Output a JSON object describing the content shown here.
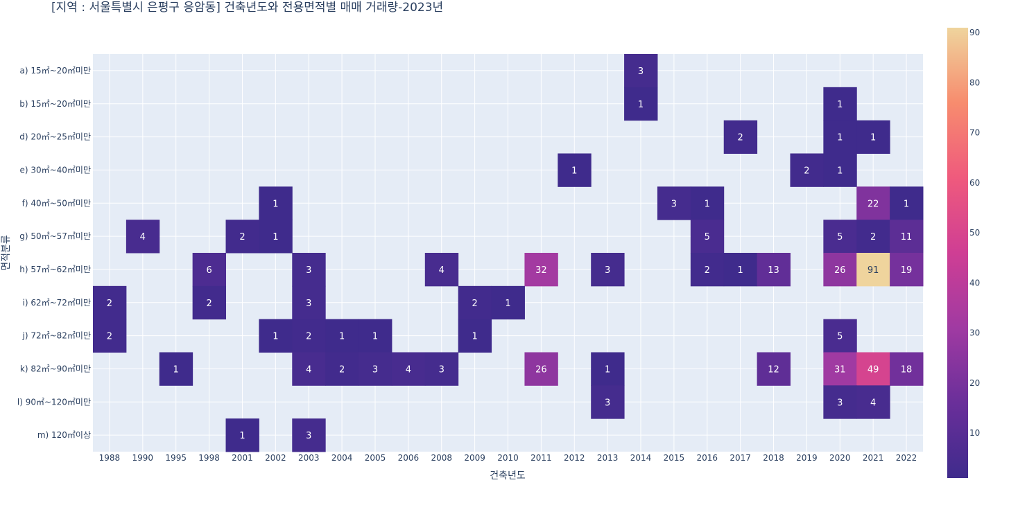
{
  "chart_data": {
    "type": "heatmap",
    "title": "[지역 : 서울특별시 은평구 응암동] 건축년도와 전용면적별 매매 거래량-2023년",
    "xlabel": "건축년도",
    "ylabel": "면적분류",
    "x": [
      "1988",
      "1990",
      "1995",
      "1998",
      "2001",
      "2002",
      "2003",
      "2004",
      "2005",
      "2006",
      "2008",
      "2009",
      "2010",
      "2011",
      "2012",
      "2013",
      "2014",
      "2015",
      "2016",
      "2017",
      "2018",
      "2019",
      "2020",
      "2021",
      "2022"
    ],
    "y": [
      "a) 15㎡~20㎡미만",
      "b) 15㎡~20㎡미만",
      "d) 20㎡~25㎡미만",
      "e) 30㎡~40㎡미만",
      "f) 40㎡~50㎡미만",
      "g) 50㎡~57㎡미만",
      "h) 57㎡~62㎡미만",
      "i) 62㎡~72㎡미만",
      "j) 72㎡~82㎡미만",
      "k) 82㎡~90㎡미만",
      "l) 90㎡~120㎡미만",
      "m) 120㎡이상"
    ],
    "z": [
      [
        null,
        null,
        null,
        null,
        null,
        null,
        null,
        null,
        null,
        null,
        null,
        null,
        null,
        null,
        null,
        null,
        3,
        null,
        null,
        null,
        null,
        null,
        null,
        null,
        null
      ],
      [
        null,
        null,
        null,
        null,
        null,
        null,
        null,
        null,
        null,
        null,
        null,
        null,
        null,
        null,
        null,
        null,
        1,
        null,
        null,
        null,
        null,
        null,
        1,
        null,
        null
      ],
      [
        null,
        null,
        null,
        null,
        null,
        null,
        null,
        null,
        null,
        null,
        null,
        null,
        null,
        null,
        null,
        null,
        null,
        null,
        null,
        2,
        null,
        null,
        1,
        1,
        null
      ],
      [
        null,
        null,
        null,
        null,
        null,
        null,
        null,
        null,
        null,
        null,
        null,
        null,
        null,
        null,
        1,
        null,
        null,
        null,
        null,
        null,
        null,
        2,
        1,
        null,
        null
      ],
      [
        null,
        null,
        null,
        null,
        null,
        1,
        null,
        null,
        null,
        null,
        null,
        null,
        null,
        null,
        null,
        null,
        null,
        3,
        1,
        null,
        null,
        null,
        null,
        22,
        1
      ],
      [
        null,
        4,
        null,
        null,
        2,
        1,
        null,
        null,
        null,
        null,
        null,
        null,
        null,
        null,
        null,
        null,
        null,
        null,
        5,
        null,
        null,
        null,
        5,
        2,
        11
      ],
      [
        null,
        null,
        null,
        6,
        null,
        null,
        3,
        null,
        null,
        null,
        4,
        null,
        null,
        32,
        null,
        3,
        null,
        null,
        2,
        1,
        13,
        null,
        26,
        91,
        19
      ],
      [
        2,
        null,
        null,
        2,
        null,
        null,
        3,
        null,
        null,
        null,
        null,
        2,
        1,
        null,
        null,
        null,
        null,
        null,
        null,
        null,
        null,
        null,
        null,
        null,
        null
      ],
      [
        2,
        null,
        null,
        null,
        null,
        1,
        2,
        1,
        1,
        null,
        null,
        1,
        null,
        null,
        null,
        null,
        null,
        null,
        null,
        null,
        null,
        null,
        5,
        null,
        null
      ],
      [
        null,
        null,
        1,
        null,
        null,
        null,
        4,
        2,
        3,
        4,
        3,
        null,
        null,
        26,
        null,
        1,
        null,
        null,
        null,
        null,
        12,
        null,
        31,
        49,
        18
      ],
      [
        null,
        null,
        null,
        null,
        null,
        null,
        null,
        null,
        null,
        null,
        null,
        null,
        null,
        null,
        null,
        3,
        null,
        null,
        null,
        null,
        null,
        null,
        3,
        4,
        null
      ],
      [
        null,
        null,
        null,
        null,
        1,
        null,
        3,
        null,
        null,
        null,
        null,
        null,
        null,
        null,
        null,
        null,
        null,
        null,
        null,
        null,
        null,
        null,
        null,
        null,
        null
      ]
    ],
    "zmin": 1,
    "zmax": 91,
    "colorscale": [
      "#3f2b8c",
      "#6a2f9a",
      "#a03aa2",
      "#cf3e94",
      "#ef5a7d",
      "#f78c6e",
      "#efd49d"
    ],
    "colorbar_ticks": [
      10,
      20,
      30,
      40,
      50,
      60,
      70,
      80,
      90
    ],
    "plot_background": "#e5ecf6",
    "grid_color": "#ffffff",
    "text_color": "#2a3f5f",
    "grid": true
  }
}
